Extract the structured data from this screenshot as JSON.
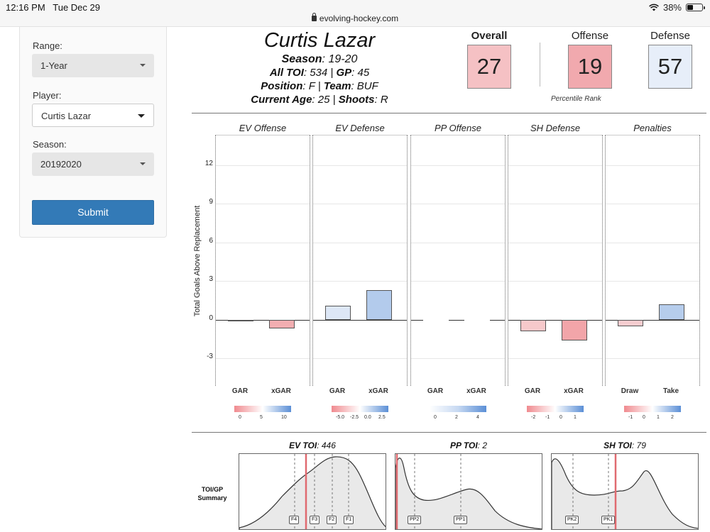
{
  "status": {
    "time": "12:16 PM",
    "date": "Tue Dec 29",
    "battery": "38%",
    "url": "evolving-hockey.com",
    "battery_level": 0.38
  },
  "sidebar": {
    "range_label": "Range:",
    "range_value": "1-Year",
    "player_label": "Player:",
    "player_value": "Curtis Lazar",
    "season_label": "Season:",
    "season_value": "20192020",
    "submit_label": "Submit"
  },
  "header": {
    "player_name": "Curtis Lazar",
    "season_key": "Season",
    "season_val": ": 19-20",
    "toi_key": "All TOI",
    "toi_val": ": 534 | ",
    "gp_key": "GP",
    "gp_val": ": 45",
    "pos_key": "Position",
    "pos_val": ": F | ",
    "team_key": "Team",
    "team_val": ": BUF",
    "age_key": "Current Age",
    "age_val": ": 25 | ",
    "shoots_key": "Shoots",
    "shoots_val": ": R"
  },
  "ranks": {
    "overall_label": "Overall",
    "overall_value": "27",
    "overall_color": "#f5c1c4",
    "offense_label": "Offense",
    "offense_value": "19",
    "offense_color": "#f1a9ae",
    "defense_label": "Defense",
    "defense_value": "57",
    "defense_color": "#e7eef9",
    "percentile_label": "Percentile Rank"
  },
  "chart_data": {
    "type": "bar",
    "ylabel": "Total Goals Above Replacement",
    "ylim": [
      -5.2,
      14.3
    ],
    "yticks": [
      "12",
      "9",
      "6",
      "3",
      "0",
      "-3"
    ],
    "ytick_values": [
      12,
      9,
      6,
      3,
      0,
      -3
    ],
    "grid": true,
    "facets": [
      {
        "title": "EV Offense",
        "categories": [
          "GAR",
          "xGAR"
        ],
        "values": [
          -0.1,
          -0.7
        ],
        "colors": [
          "#f3d7d8",
          "#f2aeb1"
        ],
        "legend_labels": [
          "0",
          "5",
          "10"
        ]
      },
      {
        "title": "EV Defense",
        "categories": [
          "GAR",
          "xGAR"
        ],
        "values": [
          1.1,
          2.3
        ],
        "colors": [
          "#dde7f6",
          "#b3cbec"
        ],
        "legend_labels": [
          "-5.0",
          "-2.5",
          "0.0",
          "2.5"
        ]
      },
      {
        "title": "PP Offense",
        "categories": [
          "GAR",
          "xGAR"
        ],
        "values": [
          0.0,
          0.0
        ],
        "colors": [
          "#ffffff",
          "#ffffff"
        ],
        "legend_labels": [
          "0",
          "2",
          "4"
        ]
      },
      {
        "title": "SH Defense",
        "categories": [
          "GAR",
          "xGAR"
        ],
        "values": [
          -0.9,
          -1.6
        ],
        "colors": [
          "#f6c9cb",
          "#f2a5a9"
        ],
        "legend_labels": [
          "-2",
          "-1",
          "0",
          "1"
        ]
      },
      {
        "title": "Penalties",
        "categories": [
          "Draw",
          "Take"
        ],
        "values": [
          -0.5,
          1.2
        ],
        "colors": [
          "#f6cdd0",
          "#b6cdec"
        ],
        "legend_labels": [
          "-1",
          "0",
          "1",
          "2"
        ]
      }
    ]
  },
  "toi": {
    "ylabel": "TOI/GP Summary",
    "panels": [
      {
        "key": "EV TOI",
        "val": ": 446",
        "tags": [
          "F4",
          "F3",
          "F2",
          "F1"
        ]
      },
      {
        "key": "PP TOI",
        "val": ": 2",
        "tags": [
          "PP2",
          "PP1"
        ]
      },
      {
        "key": "SH TOI",
        "val": ": 79",
        "tags": [
          "PK2",
          "PK1"
        ]
      }
    ]
  }
}
